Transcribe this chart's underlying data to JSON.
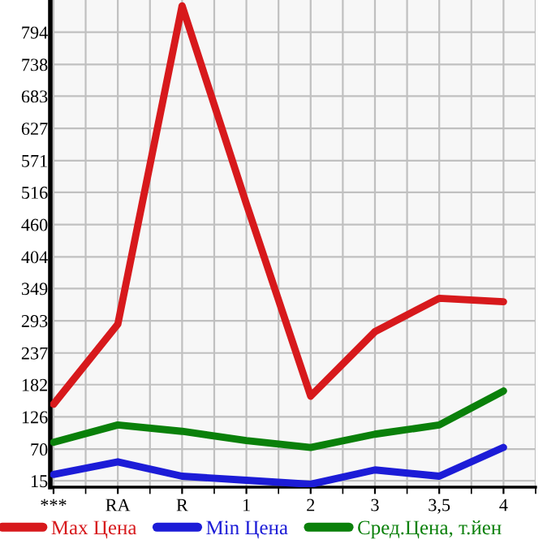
{
  "chart_data": {
    "type": "line",
    "categories": [
      "***",
      "RA",
      "R",
      "1",
      "2",
      "3",
      "3,5",
      "4"
    ],
    "series": [
      {
        "name": "Max Цена",
        "color": "#d7191c",
        "values": [
          148,
          287,
          840,
          496,
          162,
          274,
          332,
          326
        ]
      },
      {
        "name": "Min Цена",
        "color": "#1c1cd7",
        "values": [
          26,
          48,
          23,
          16,
          9,
          34,
          23,
          73
        ]
      },
      {
        "name": "Сред.Цена, т.йен",
        "color": "#0a800a",
        "values": [
          82,
          112,
          101,
          85,
          73,
          96,
          112,
          171
        ]
      }
    ],
    "ylim": [
      4,
      850
    ],
    "yticks": [
      15,
      70,
      126,
      182,
      237,
      293,
      349,
      404,
      460,
      516,
      571,
      627,
      683,
      738,
      794
    ],
    "grid": true,
    "legend": "bottom",
    "marker": "none",
    "line_style": "solid"
  }
}
